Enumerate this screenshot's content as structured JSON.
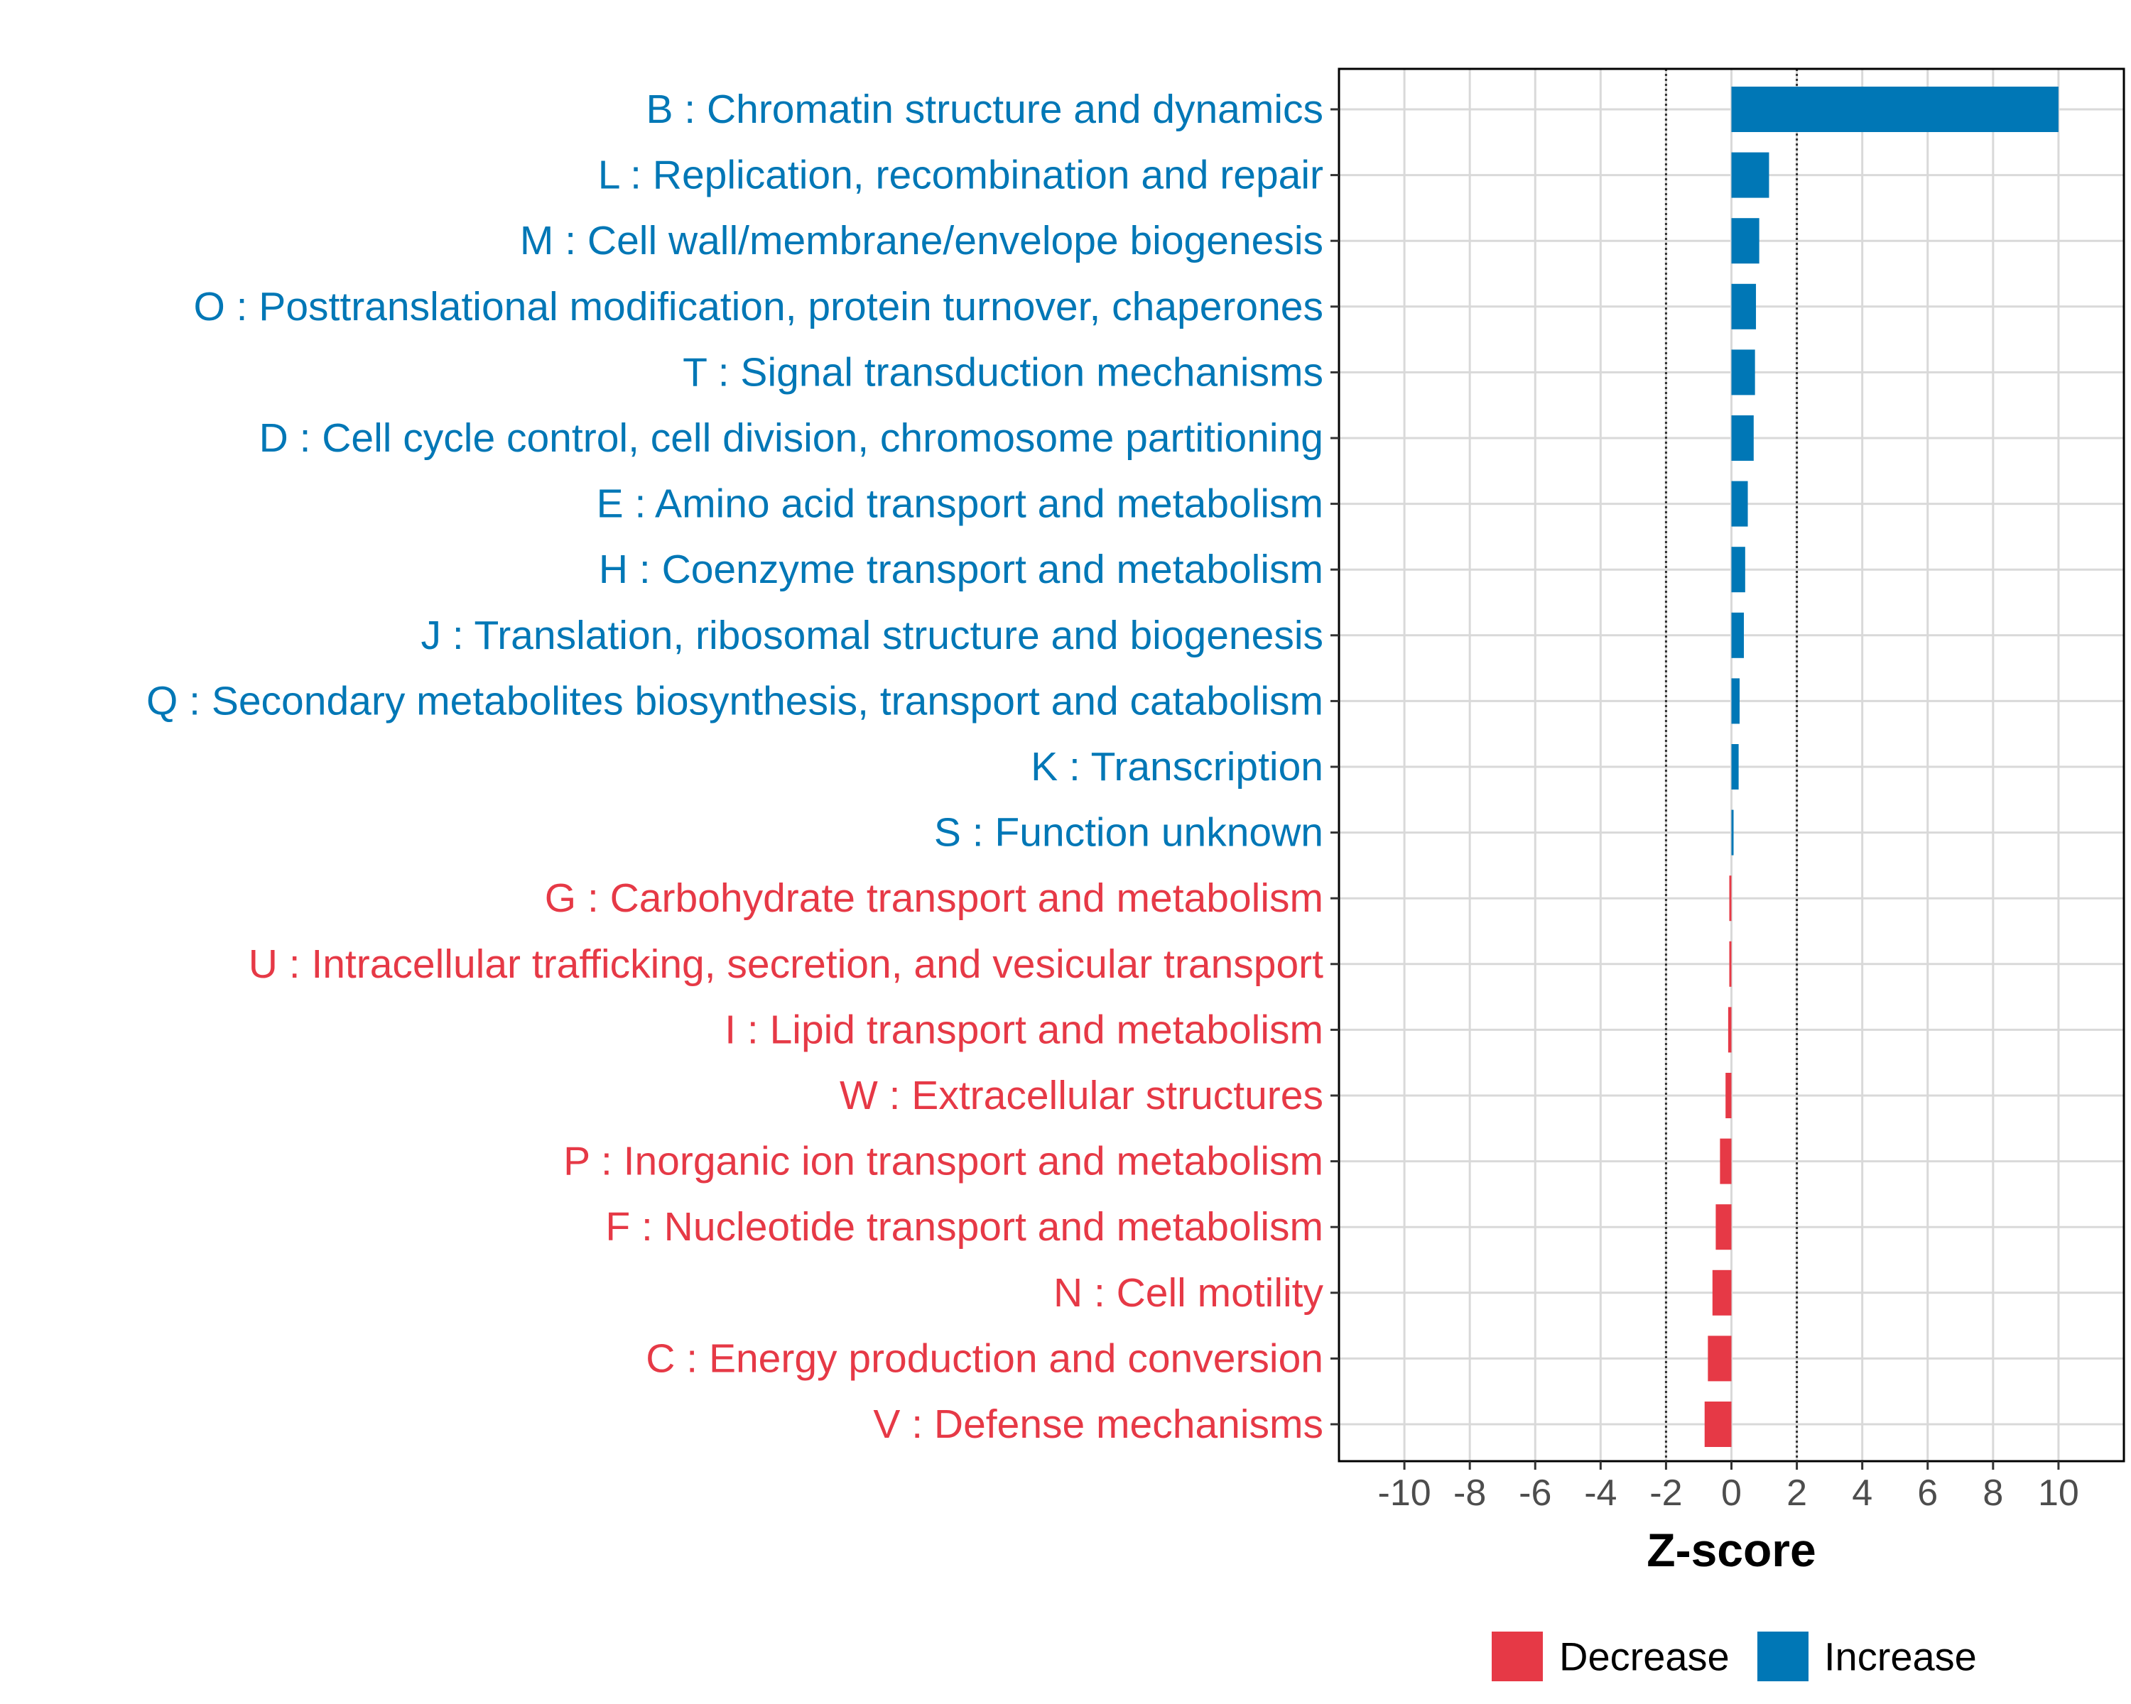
{
  "chart_data": {
    "type": "bar",
    "orientation": "horizontal",
    "title": "",
    "xlabel": "Z-score",
    "ylabel": "",
    "xlim": [
      -12,
      12
    ],
    "x_ticks": [
      -10,
      -8,
      -6,
      -4,
      -2,
      0,
      2,
      4,
      6,
      8,
      10
    ],
    "x_tick_labels": [
      "-10",
      "-8",
      "-6",
      "-4",
      "-2",
      "0",
      "2",
      "4",
      "6",
      "8",
      "10"
    ],
    "threshold_lines": [
      -2,
      2
    ],
    "grid": true,
    "categories": [
      "B : Chromatin structure and dynamics",
      "L : Replication, recombination and repair",
      "M : Cell wall/membrane/envelope biogenesis",
      "O : Posttranslational modification, protein turnover, chaperones",
      "T : Signal transduction mechanisms",
      "D : Cell cycle control, cell division, chromosome partitioning",
      "E : Amino acid transport and metabolism",
      "H : Coenzyme transport and metabolism",
      "J : Translation, ribosomal structure and biogenesis",
      "Q : Secondary metabolites biosynthesis, transport and catabolism",
      "K : Transcription",
      "S : Function unknown",
      "G : Carbohydrate transport and metabolism",
      "U : Intracellular trafficking, secretion, and vesicular transport",
      "I : Lipid transport and metabolism",
      "W : Extracellular structures",
      "P : Inorganic ion transport and metabolism",
      "F : Nucleotide transport and metabolism",
      "N : Cell motility",
      "C : Energy production and conversion",
      "V : Defense mechanisms"
    ],
    "values": [
      10.0,
      1.15,
      0.85,
      0.75,
      0.72,
      0.68,
      0.5,
      0.42,
      0.38,
      0.25,
      0.22,
      0.05,
      -0.02,
      -0.05,
      -0.1,
      -0.18,
      -0.35,
      -0.48,
      -0.58,
      -0.72,
      -0.82
    ],
    "direction": [
      "Increase",
      "Increase",
      "Increase",
      "Increase",
      "Increase",
      "Increase",
      "Increase",
      "Increase",
      "Increase",
      "Increase",
      "Increase",
      "Increase",
      "Decrease",
      "Decrease",
      "Decrease",
      "Decrease",
      "Decrease",
      "Decrease",
      "Decrease",
      "Decrease",
      "Decrease"
    ],
    "legend": {
      "position": "bottom",
      "entries": [
        {
          "label": "Decrease",
          "color": "#e63946"
        },
        {
          "label": "Increase",
          "color": "#0077b6"
        }
      ]
    },
    "colors": {
      "Increase": "#0077b6",
      "Decrease": "#e63946",
      "grid": "#d9d9d9",
      "panel_border": "#000000",
      "threshold": "#333333"
    }
  }
}
